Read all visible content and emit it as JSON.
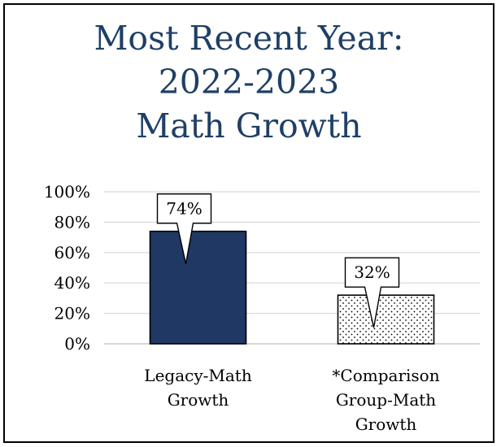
{
  "chart_data": {
    "type": "bar",
    "title": [
      "Most Recent Year:",
      "2022-2023",
      "Math Growth"
    ],
    "categories": [
      [
        "Legacy-Math",
        "Growth"
      ],
      [
        "*Comparison",
        "Group-Math",
        "Growth"
      ]
    ],
    "values": [
      74,
      32
    ],
    "data_labels": [
      "74%",
      "32%"
    ],
    "y_ticks": [
      "0%",
      "20%",
      "40%",
      "60%",
      "80%",
      "100%"
    ],
    "ylim": [
      0,
      100
    ],
    "grid": true,
    "legend": "none",
    "bar_styles": [
      {
        "fill": "#1f3864",
        "pattern": "solid"
      },
      {
        "fill": "#ffffff",
        "pattern": "dotted"
      }
    ]
  }
}
